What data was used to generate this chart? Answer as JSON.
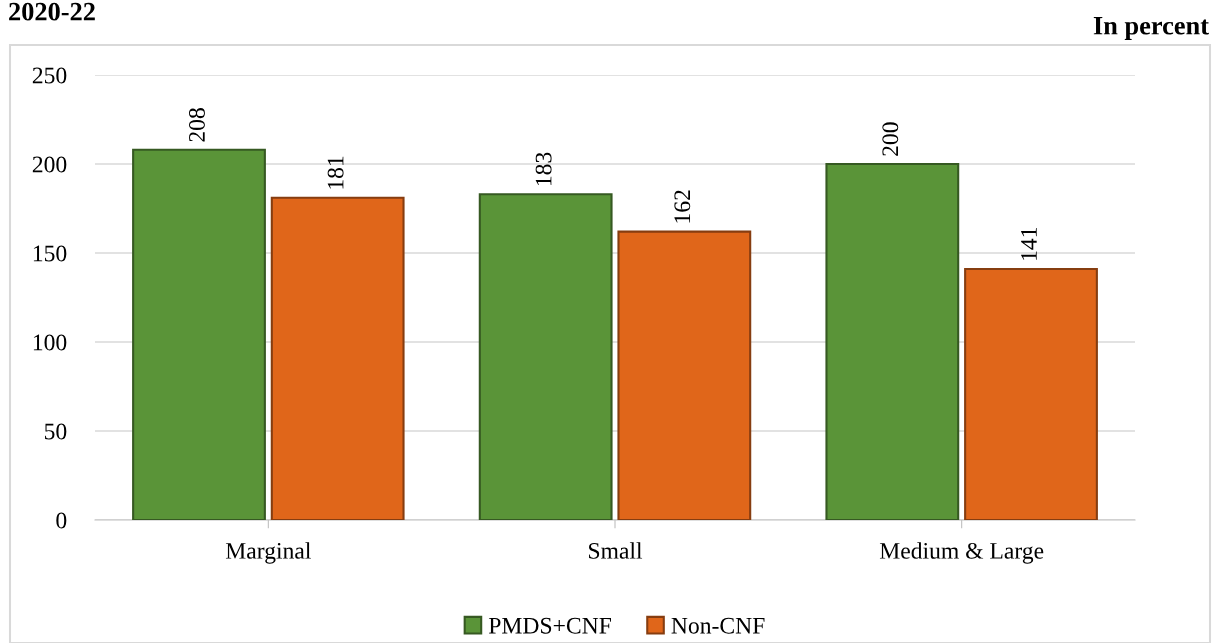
{
  "chart_data": {
    "type": "bar",
    "subtitle": "In percent",
    "annotations": [
      "2020-22"
    ],
    "categories": [
      "Marginal",
      "Small",
      "Medium & Large"
    ],
    "series": [
      {
        "name": "PMDS+CNF",
        "color": "#5a9438",
        "values": [
          208,
          183,
          200
        ]
      },
      {
        "name": "Non-CNF",
        "color": "#e0661a",
        "values": [
          181,
          162,
          141
        ]
      }
    ],
    "ylim": [
      0,
      250
    ],
    "yticks": [
      0,
      50,
      100,
      150,
      200,
      250
    ],
    "grid": "y",
    "legend": "bottom",
    "data_labels": true
  }
}
